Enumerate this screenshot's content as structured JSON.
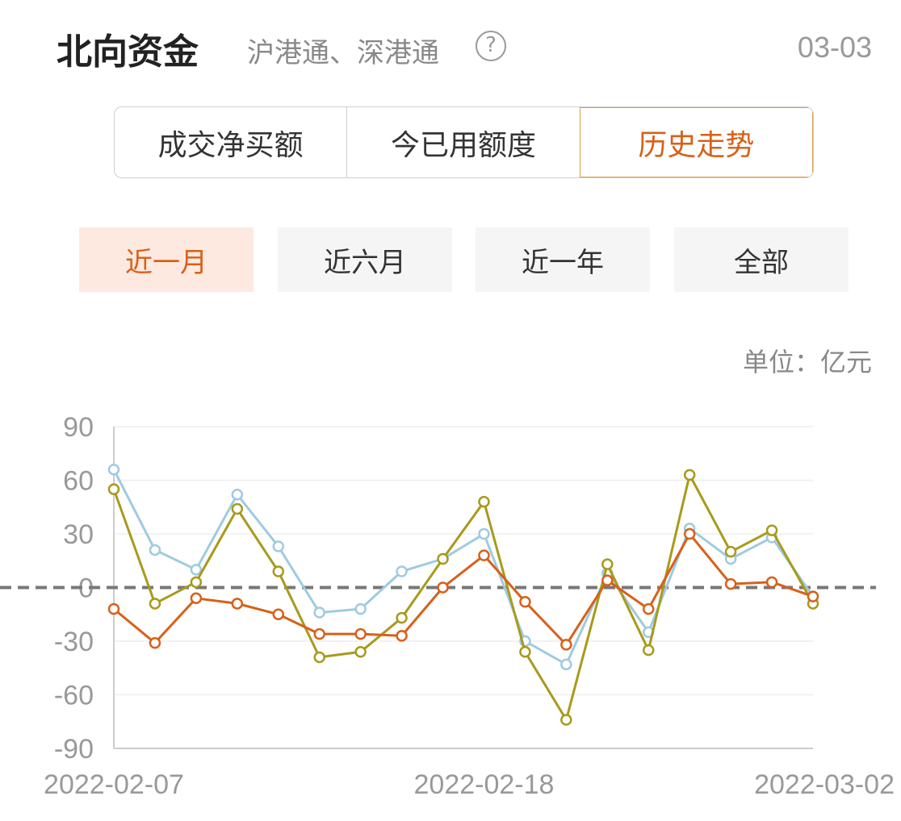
{
  "header": {
    "title": "北向资金",
    "subtitle": "沪港通、深港通",
    "help": "?",
    "date": "03-03"
  },
  "tabs": [
    "成交净买额",
    "今已用额度",
    "历史走势"
  ],
  "ranges": [
    "近一月",
    "近六月",
    "近一年",
    "全部"
  ],
  "unit": "单位：亿元",
  "colors": {
    "accent": "#d86018",
    "accent_bg": "#fde9df",
    "series_light_blue": "#9ecbe0",
    "series_olive": "#a89a1c",
    "series_orange": "#d8601a"
  },
  "chart_data": {
    "type": "line",
    "ylim": [
      -90,
      90
    ],
    "yticks": [
      90,
      60,
      30,
      0,
      -30,
      -60,
      -90
    ],
    "x": [
      "2022-02-07",
      "2022-02-08",
      "2022-02-09",
      "2022-02-10",
      "2022-02-11",
      "2022-02-14",
      "2022-02-15",
      "2022-02-16",
      "2022-02-17",
      "2022-02-18",
      "2022-02-21",
      "2022-02-22",
      "2022-02-23",
      "2022-02-24",
      "2022-02-25",
      "2022-02-28",
      "2022-03-01",
      "2022-03-02"
    ],
    "xtick_labels": [
      "2022-02-07",
      "2022-02-18",
      "2022-03-02"
    ],
    "zero_line": "dashed",
    "grid": true,
    "series": [
      {
        "color": "#9ecbe0",
        "values": [
          66,
          21,
          10,
          52,
          23,
          -14,
          -12,
          9,
          16,
          30,
          -30,
          -43,
          8,
          -25,
          33,
          16,
          28,
          -5
        ]
      },
      {
        "color": "#a89a1c",
        "values": [
          55,
          -9,
          3,
          44,
          9,
          -39,
          -36,
          -17,
          16,
          48,
          -36,
          -74,
          13,
          -35,
          63,
          20,
          32,
          -9
        ]
      },
      {
        "color": "#d8601a",
        "values": [
          -12,
          -31,
          -6,
          -9,
          -15,
          -26,
          -26,
          -27,
          0,
          18,
          -8,
          -32,
          4,
          -12,
          30,
          2,
          3,
          -5
        ]
      }
    ]
  }
}
